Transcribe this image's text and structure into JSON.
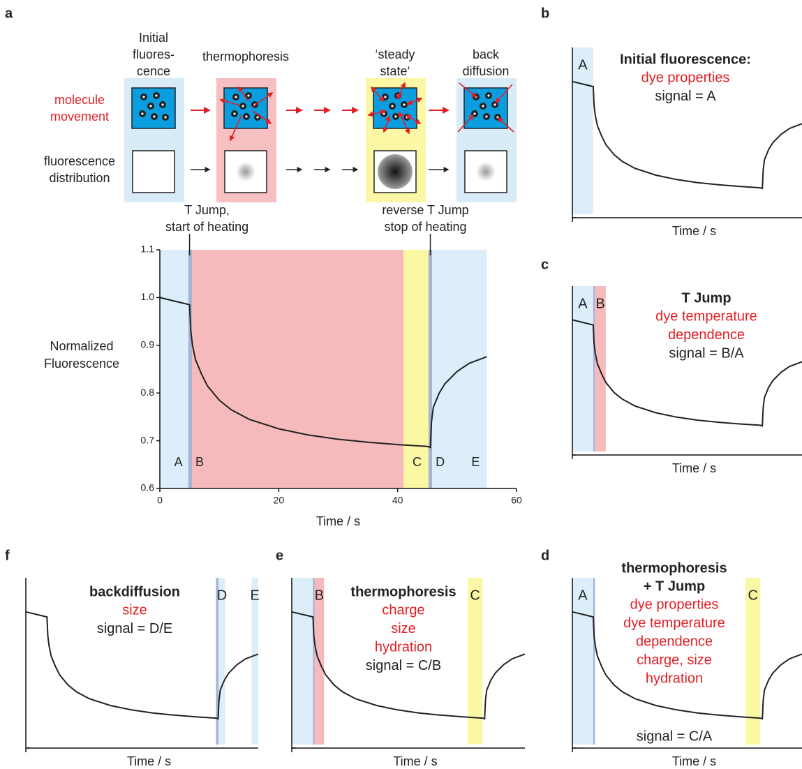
{
  "diagram": {
    "stages": [
      {
        "header": [
          "Initial",
          "fluores-",
          "cence"
        ],
        "color": "#d8ecf8"
      },
      {
        "header": [
          "thermophoresis"
        ],
        "color": "#f6c0c2"
      },
      {
        "header": [
          "‘steady",
          "state‘"
        ],
        "color": "#fbf7a5"
      },
      {
        "header": [
          "back",
          "diffusion"
        ],
        "color": "#d8ecf8"
      }
    ],
    "row_labels": [
      {
        "lines": [
          "molecule",
          "movement"
        ],
        "color": "#e31e24"
      },
      {
        "lines": [
          "fluorescence",
          "distribution"
        ],
        "color": "#222222"
      }
    ]
  },
  "chart_data": [
    {
      "panel": "a",
      "type": "line",
      "xlabel": "Time / s",
      "ylabel": [
        "Normalized",
        "Fluorescence"
      ],
      "x": [
        0,
        5,
        5.2,
        5.5,
        6,
        7,
        8,
        10,
        12,
        15,
        20,
        25,
        30,
        35,
        40,
        45,
        45.5,
        45.7,
        46,
        47,
        48,
        50,
        52,
        55
      ],
      "values": [
        1.0,
        0.985,
        0.93,
        0.9,
        0.87,
        0.84,
        0.815,
        0.785,
        0.765,
        0.745,
        0.725,
        0.712,
        0.703,
        0.697,
        0.692,
        0.688,
        0.686,
        0.74,
        0.77,
        0.8,
        0.82,
        0.845,
        0.862,
        0.876
      ],
      "color": "#222222",
      "xlim": [
        0,
        60
      ],
      "ylim": [
        0.6,
        1.1
      ],
      "xticks": [
        0,
        20,
        40,
        60
      ],
      "yticks": [
        0.6,
        0.7,
        0.8,
        0.9,
        {
          "value": 1.0,
          "label": "1.0"
        },
        1.1
      ],
      "regions": [
        {
          "start": 0,
          "end": 5,
          "color": "#dceefa",
          "label": "A"
        },
        {
          "start": 4.8,
          "end": 5.4,
          "color": "#aab2d6",
          "label": "B"
        },
        {
          "start": 5.4,
          "end": 41,
          "color": "#f6babd"
        },
        {
          "start": 41,
          "end": 45.2,
          "color": "#fbf8a4",
          "label": "C"
        },
        {
          "start": 45.2,
          "end": 45.8,
          "color": "#aab2d6",
          "label": "D"
        },
        {
          "start": 45.8,
          "end": 55,
          "color": "#dceefa",
          "label": "E"
        }
      ],
      "annotations": [
        {
          "x": 5,
          "lines": [
            "T Jump,",
            "start of heating"
          ]
        },
        {
          "x": 45.5,
          "lines": [
            "reverse T Jump",
            "stop of heating"
          ]
        }
      ]
    },
    {
      "panel": "b",
      "type": "line",
      "xlabel": "Time / s",
      "xlim": [
        0,
        55
      ],
      "ylim": [
        0.6,
        1.1
      ],
      "title": [
        "Initial fluorescence:"
      ],
      "details": [
        "dye properties"
      ],
      "signal": "signal = A",
      "regions": [
        {
          "start": 0,
          "end": 5,
          "color": "#dceefa",
          "label": "A"
        }
      ]
    },
    {
      "panel": "c",
      "type": "line",
      "xlabel": "Time / s",
      "xlim": [
        0,
        55
      ],
      "ylim": [
        0.6,
        1.1
      ],
      "title": [
        "T Jump"
      ],
      "details": [
        "dye temperature",
        "dependence"
      ],
      "signal": "signal = B/A",
      "regions": [
        {
          "start": 0,
          "end": 5,
          "color": "#dceefa",
          "label": "A"
        },
        {
          "start": 5,
          "end": 5.4,
          "color": "#aab2d6"
        },
        {
          "start": 5.4,
          "end": 8,
          "color": "#f6babd",
          "label": "B"
        }
      ]
    },
    {
      "panel": "d",
      "type": "line",
      "xlabel": "Time / s",
      "xlim": [
        0,
        55
      ],
      "ylim": [
        0.6,
        1.1
      ],
      "title": [
        "thermophoresis",
        "+ T Jump"
      ],
      "details": [
        "dye properties",
        "dye temperature",
        "dependence",
        "charge, size",
        "hydration"
      ],
      "signal": "signal = C/A",
      "regions": [
        {
          "start": 0,
          "end": 5,
          "color": "#dceefa",
          "label": "A"
        },
        {
          "start": 5,
          "end": 5.4,
          "color": "#aab2d6"
        },
        {
          "start": 41.5,
          "end": 45,
          "color": "#fbf8a4",
          "label": "C"
        }
      ]
    },
    {
      "panel": "e",
      "type": "line",
      "xlabel": "Time / s",
      "xlim": [
        0,
        55
      ],
      "ylim": [
        0.6,
        1.1
      ],
      "title": [
        "thermophoresis"
      ],
      "details": [
        "charge",
        "size",
        "hydration"
      ],
      "signal": "signal = C/B",
      "regions": [
        {
          "start": 0,
          "end": 5,
          "color": "#dceefa"
        },
        {
          "start": 5,
          "end": 5.4,
          "color": "#aab2d6"
        },
        {
          "start": 5.4,
          "end": 7.6,
          "color": "#f6babd",
          "label": "B"
        },
        {
          "start": 41.5,
          "end": 45,
          "color": "#fbf8a4",
          "label": "C"
        }
      ]
    },
    {
      "panel": "f",
      "type": "line",
      "xlabel": "Time / s",
      "xlim": [
        0,
        55
      ],
      "ylim": [
        0.6,
        1.1
      ],
      "title": [
        "backdiffusion"
      ],
      "details": [
        "size"
      ],
      "signal": "signal = D/E",
      "regions": [
        {
          "start": 45,
          "end": 45.6,
          "color": "#aab2d6"
        },
        {
          "start": 45.6,
          "end": 47.2,
          "color": "#dceefa",
          "label": "D"
        },
        {
          "start": 53.4,
          "end": 55,
          "color": "#dceefa",
          "label": "E"
        }
      ]
    }
  ]
}
